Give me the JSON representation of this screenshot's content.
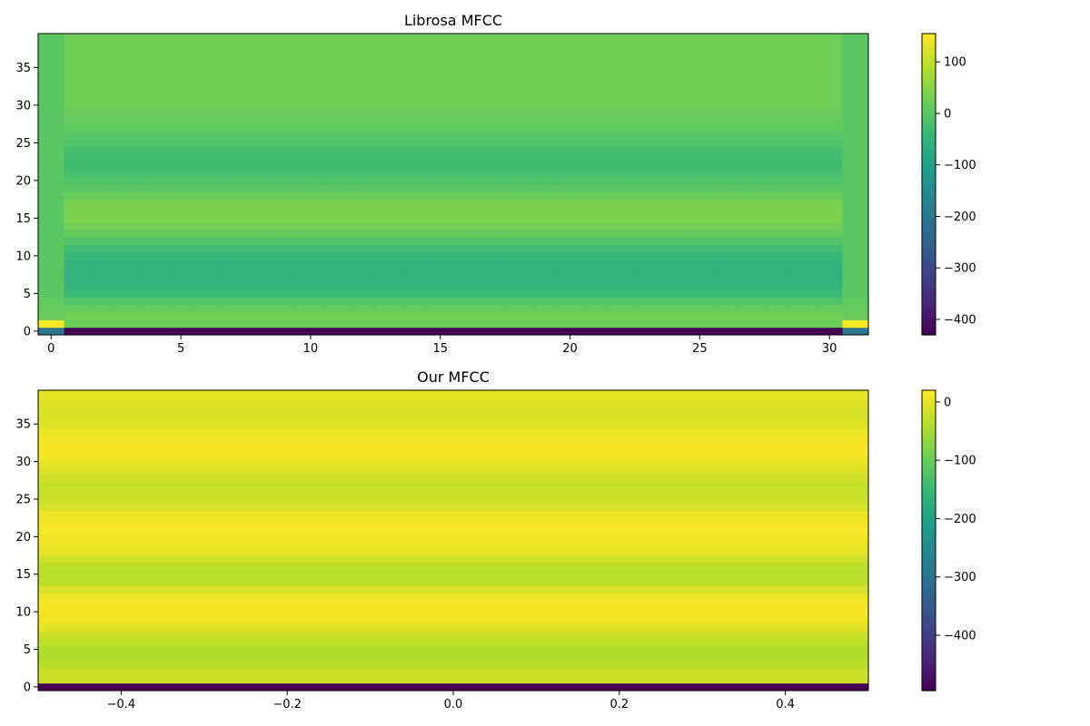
{
  "colormap": {
    "name": "viridis",
    "stops": [
      "#440154",
      "#482878",
      "#3e4989",
      "#31688e",
      "#26828e",
      "#1f9e89",
      "#35b779",
      "#6ece58",
      "#b5de2b",
      "#fde725"
    ]
  },
  "chart_data": [
    {
      "type": "heatmap",
      "title": "Librosa MFCC",
      "xlabel": "",
      "ylabel": "",
      "xlim": [
        -0.5,
        31.5
      ],
      "ylim": [
        -0.5,
        39.5
      ],
      "xticks": [
        0,
        5,
        10,
        15,
        20,
        25,
        30
      ],
      "yticks": [
        0,
        5,
        10,
        15,
        20,
        25,
        30,
        35
      ],
      "n_frames": 32,
      "n_coeffs": 40,
      "color_range": [
        -430,
        155
      ],
      "colorbar_ticks": [
        100,
        0,
        -100,
        -200,
        -300,
        -400
      ],
      "interior_column_values": [
        -430,
        20,
        30,
        15,
        -10,
        -35,
        -45,
        -55,
        -55,
        -50,
        -40,
        -25,
        -5,
        15,
        30,
        40,
        40,
        35,
        20,
        5,
        -10,
        -20,
        -25,
        -25,
        -20,
        -10,
        0,
        10,
        15,
        20,
        25,
        25,
        25,
        25,
        25,
        25,
        25,
        25,
        25,
        25
      ],
      "edge_column_values": [
        -200,
        155,
        20,
        15,
        10,
        5,
        5,
        5,
        5,
        5,
        5,
        5,
        5,
        5,
        5,
        5,
        5,
        5,
        5,
        5,
        5,
        5,
        5,
        5,
        5,
        5,
        5,
        5,
        5,
        5,
        5,
        5,
        5,
        5,
        5,
        5,
        5,
        5,
        5,
        5
      ],
      "edge_columns": [
        0,
        31
      ]
    },
    {
      "type": "heatmap",
      "title": "Our MFCC",
      "xlabel": "",
      "ylabel": "",
      "xlim": [
        -0.5,
        0.5
      ],
      "ylim": [
        -0.5,
        39.5
      ],
      "xticks": [
        -0.4,
        -0.2,
        0.0,
        0.2,
        0.4
      ],
      "xtick_labels": [
        "−0.4",
        "−0.2",
        "0.0",
        "0.2",
        "0.4"
      ],
      "yticks": [
        0,
        5,
        10,
        15,
        20,
        25,
        30,
        35
      ],
      "n_frames": 1,
      "n_coeffs": 40,
      "color_range": [
        -495,
        20
      ],
      "colorbar_ticks": [
        0,
        -100,
        -200,
        -300,
        -400
      ],
      "column_values": [
        -495,
        -20,
        -20,
        -35,
        -40,
        -40,
        -30,
        -20,
        0,
        10,
        15,
        15,
        5,
        -10,
        -30,
        -35,
        -30,
        -20,
        0,
        5,
        10,
        15,
        10,
        5,
        -10,
        -20,
        -25,
        -25,
        -15,
        -5,
        5,
        15,
        15,
        10,
        5,
        -5,
        -10,
        -10,
        -5,
        0
      ]
    }
  ]
}
